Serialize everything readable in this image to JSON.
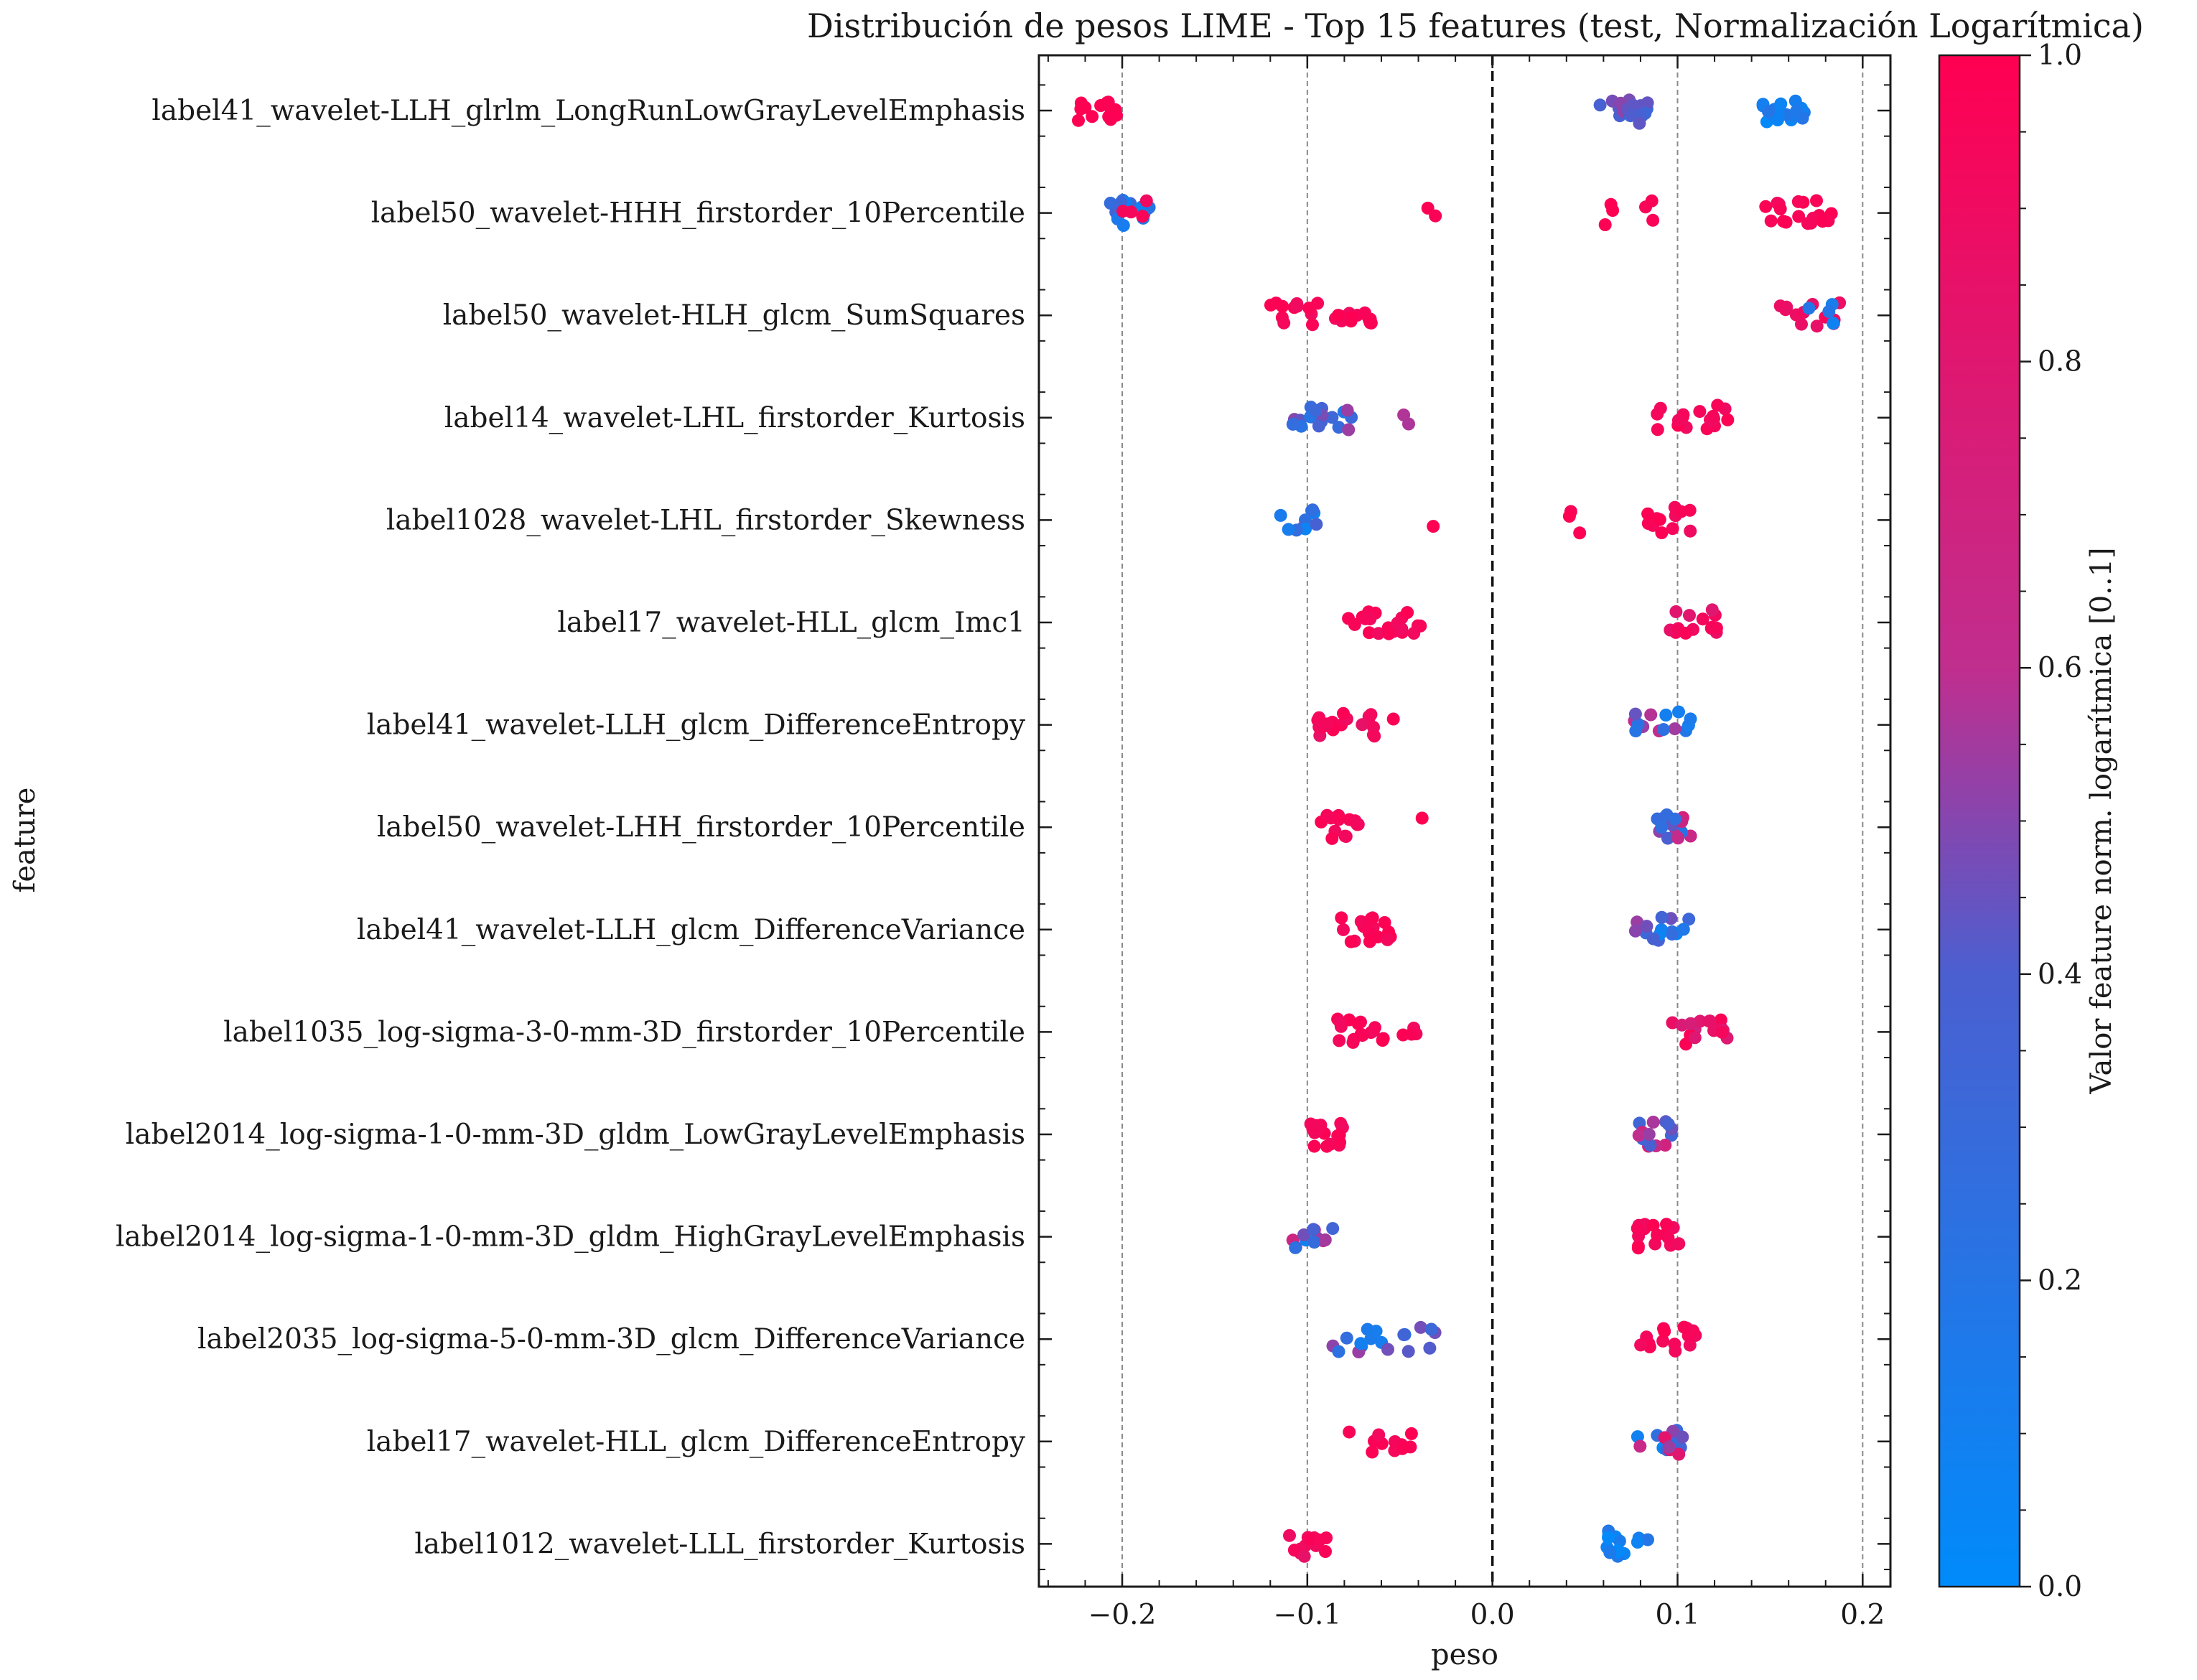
{
  "chart_data": {
    "type": "scatter",
    "subtype": "beeswarm",
    "title": "Distribución de pesos LIME - Top 15 features (test, Normalización Logarítmica)",
    "xlabel": "peso",
    "ylabel": "feature",
    "xlim": [
      -0.245,
      0.215
    ],
    "xticks": [
      -0.2,
      -0.1,
      0.0,
      0.1,
      0.2
    ],
    "xtick_labels": [
      "−0.2",
      "−0.1",
      "0.0",
      "0.1",
      "0.2"
    ],
    "grid": "vertical dashed at major ticks",
    "zero_line": true,
    "colorbar": {
      "label": "Valor feature norm. logarítmica [0..1]",
      "range": [
        0.0,
        1.0
      ],
      "ticks": [
        "0.0",
        "0.2",
        "0.4",
        "0.6",
        "0.8",
        "1.0"
      ],
      "colormap": [
        "#008bfb",
        "#ff0052"
      ]
    },
    "features": [
      {
        "name": "label41_wavelet-LLH_glrlm_LongRunLowGrayLevelEmphasis",
        "clusters": [
          {
            "x": [
              -0.228,
              -0.203
            ],
            "n": 14,
            "c": [
              0.98,
              1.0
            ]
          },
          {
            "x": [
              0.058,
              0.085
            ],
            "n": 18,
            "c": [
              0.32,
              0.55
            ]
          },
          {
            "x": [
              0.146,
              0.172
            ],
            "n": 18,
            "c": [
              0.0,
              0.2
            ]
          }
        ]
      },
      {
        "name": "label50_wavelet-HHH_firstorder_10Percentile",
        "clusters": [
          {
            "x": [
              -0.21,
              -0.18
            ],
            "n": 14,
            "c": [
              0.05,
              0.35
            ]
          },
          {
            "x": [
              -0.21,
              -0.18
            ],
            "n": 4,
            "c": [
              0.9,
              1.0
            ]
          },
          {
            "x": [
              -0.042,
              -0.03
            ],
            "n": 2,
            "c": [
              0.95,
              1.0
            ]
          },
          {
            "x": [
              0.05,
              0.087
            ],
            "n": 6,
            "c": [
              0.95,
              1.0
            ]
          },
          {
            "x": [
              0.146,
              0.185
            ],
            "n": 18,
            "c": [
              0.92,
              1.0
            ]
          }
        ]
      },
      {
        "name": "label50_wavelet-HLH_glcm_SumSquares",
        "clusters": [
          {
            "x": [
              -0.12,
              -0.065
            ],
            "n": 26,
            "c": [
              0.9,
              1.0
            ]
          },
          {
            "x": [
              0.155,
              0.197
            ],
            "n": 12,
            "c": [
              0.85,
              1.0
            ]
          },
          {
            "x": [
              0.17,
              0.185
            ],
            "n": 4,
            "c": [
              0.05,
              0.2
            ]
          }
        ]
      },
      {
        "name": "label14_wavelet-LHL_firstorder_Kurtosis",
        "clusters": [
          {
            "x": [
              -0.108,
              -0.075
            ],
            "n": 18,
            "c": [
              0.15,
              0.55
            ]
          },
          {
            "x": [
              -0.05,
              -0.04
            ],
            "n": 2,
            "c": [
              0.5,
              0.6
            ]
          },
          {
            "x": [
              0.088,
              0.128
            ],
            "n": 18,
            "c": [
              0.9,
              1.0
            ]
          }
        ]
      },
      {
        "name": "label1028_wavelet-LHL_firstorder_Skewness",
        "clusters": [
          {
            "x": [
              -0.115,
              -0.093
            ],
            "n": 10,
            "c": [
              0.0,
              0.45
            ]
          },
          {
            "x": [
              -0.032,
              -0.032
            ],
            "n": 1,
            "c": [
              1.0,
              1.0
            ]
          },
          {
            "x": [
              0.04,
              0.048
            ],
            "n": 3,
            "c": [
              0.95,
              1.0
            ]
          },
          {
            "x": [
              0.075,
              0.108
            ],
            "n": 12,
            "c": [
              0.9,
              1.0
            ]
          }
        ]
      },
      {
        "name": "label17_wavelet-HLL_glcm_Imc1",
        "clusters": [
          {
            "x": [
              -0.088,
              -0.038
            ],
            "n": 20,
            "c": [
              0.9,
              1.0
            ]
          },
          {
            "x": [
              0.092,
              0.122
            ],
            "n": 14,
            "c": [
              0.8,
              1.0
            ]
          }
        ]
      },
      {
        "name": "label41_wavelet-LLH_glcm_DifferenceEntropy",
        "clusters": [
          {
            "x": [
              -0.095,
              -0.043
            ],
            "n": 20,
            "c": [
              0.85,
              1.0
            ]
          },
          {
            "x": [
              0.075,
              0.11
            ],
            "n": 14,
            "c": [
              0.1,
              0.7
            ]
          }
        ]
      },
      {
        "name": "label50_wavelet-LHH_firstorder_10Percentile",
        "clusters": [
          {
            "x": [
              -0.093,
              -0.072
            ],
            "n": 14,
            "c": [
              0.9,
              1.0
            ]
          },
          {
            "x": [
              -0.038,
              -0.038
            ],
            "n": 1,
            "c": [
              1.0,
              1.0
            ]
          },
          {
            "x": [
              0.085,
              0.108
            ],
            "n": 14,
            "c": [
              0.2,
              0.9
            ]
          }
        ]
      },
      {
        "name": "label41_wavelet-LLH_glcm_DifferenceVariance",
        "clusters": [
          {
            "x": [
              -0.082,
              -0.055
            ],
            "n": 16,
            "c": [
              0.9,
              1.0
            ]
          },
          {
            "x": [
              0.077,
              0.108
            ],
            "n": 16,
            "c": [
              0.05,
              0.55
            ]
          }
        ]
      },
      {
        "name": "label1035_log-sigma-3-0-mm-3D_firstorder_10Percentile",
        "clusters": [
          {
            "x": [
              -0.097,
              -0.038
            ],
            "n": 20,
            "c": [
              0.9,
              1.0
            ]
          },
          {
            "x": [
              0.095,
              0.128
            ],
            "n": 16,
            "c": [
              0.7,
              1.0
            ]
          }
        ]
      },
      {
        "name": "label2014_log-sigma-1-0-mm-3D_gldm_LowGrayLevelEmphasis",
        "clusters": [
          {
            "x": [
              -0.107,
              -0.08
            ],
            "n": 16,
            "c": [
              0.9,
              1.0
            ]
          },
          {
            "x": [
              0.078,
              0.103
            ],
            "n": 14,
            "c": [
              0.3,
              0.8
            ]
          }
        ]
      },
      {
        "name": "label2014_log-sigma-1-0-mm-3D_gldm_HighGrayLevelEmphasis",
        "clusters": [
          {
            "x": [
              -0.108,
              -0.085
            ],
            "n": 12,
            "c": [
              0.1,
              0.7
            ]
          },
          {
            "x": [
              0.078,
              0.103
            ],
            "n": 18,
            "c": [
              0.9,
              1.0
            ]
          }
        ]
      },
      {
        "name": "label2035_log-sigma-5-0-mm-3D_glcm_DifferenceVariance",
        "clusters": [
          {
            "x": [
              -0.088,
              -0.03
            ],
            "n": 18,
            "c": [
              0.05,
              0.55
            ]
          },
          {
            "x": [
              0.08,
              0.11
            ],
            "n": 16,
            "c": [
              0.9,
              1.0
            ]
          }
        ]
      },
      {
        "name": "label17_wavelet-HLL_glcm_DifferenceEntropy",
        "clusters": [
          {
            "x": [
              -0.078,
              -0.04
            ],
            "n": 12,
            "c": [
              0.9,
              1.0
            ]
          },
          {
            "x": [
              0.078,
              0.103
            ],
            "n": 14,
            "c": [
              0.0,
              1.0
            ]
          }
        ]
      },
      {
        "name": "label1012_wavelet-LLL_firstorder_Kurtosis",
        "clusters": [
          {
            "x": [
              -0.11,
              -0.088
            ],
            "n": 14,
            "c": [
              0.85,
              1.0
            ]
          },
          {
            "x": [
              0.06,
              0.085
            ],
            "n": 16,
            "c": [
              0.0,
              0.2
            ]
          }
        ]
      }
    ]
  }
}
